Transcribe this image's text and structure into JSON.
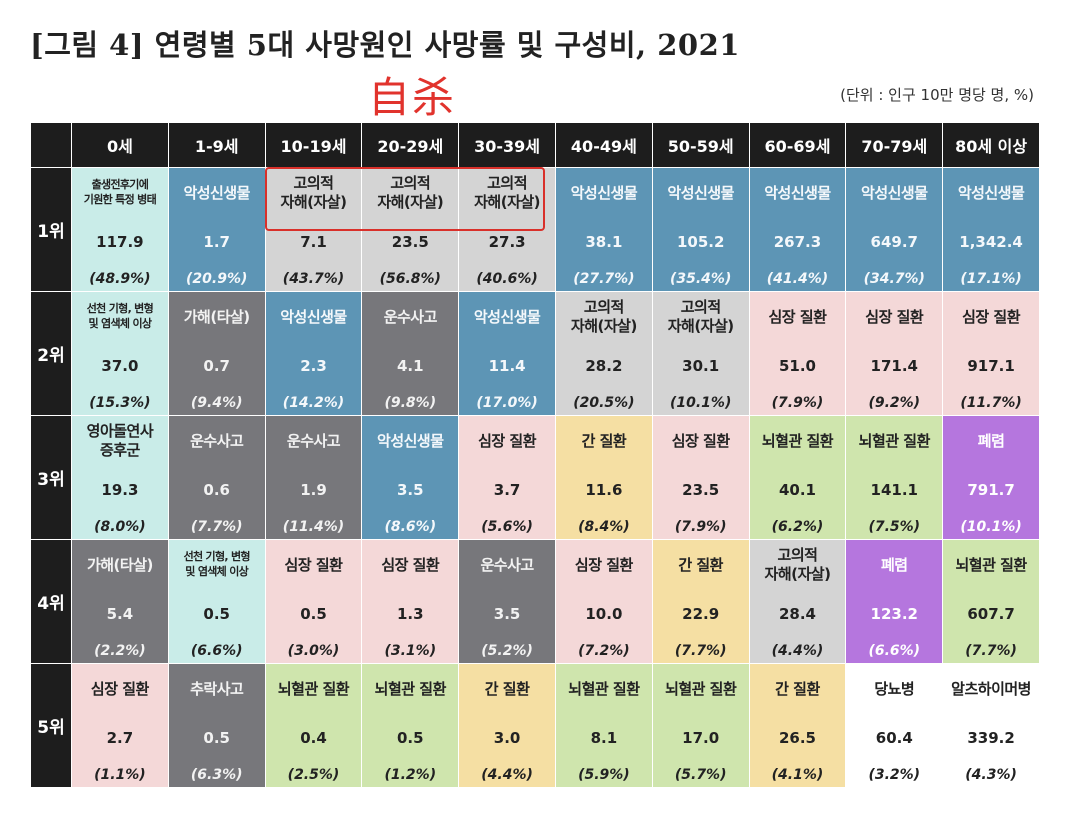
{
  "title": "[그림 4] 연령별 5대 사망원인 사망률 및 구성비, 2021",
  "annotation": "自杀",
  "unit": "(단위 : 인구 10만 명당 명, %)",
  "columns": [
    "0세",
    "1-9세",
    "10-19세",
    "20-29세",
    "30-39세",
    "40-49세",
    "50-59세",
    "60-69세",
    "70-79세",
    "80세 이상"
  ],
  "rows": [
    {
      "rank": "1위",
      "cells": [
        {
          "cause": "출생전후기에\n기원한 특정 병태",
          "rate": "117.9",
          "share": "(48.9%)",
          "color": "cyan",
          "small": true
        },
        {
          "cause": "악성신생물",
          "rate": "1.7",
          "share": "(20.9%)",
          "color": "blue"
        },
        {
          "cause": "고의적\n자해(자살)",
          "rate": "7.1",
          "share": "(43.7%)",
          "color": "lgray"
        },
        {
          "cause": "고의적\n자해(자살)",
          "rate": "23.5",
          "share": "(56.8%)",
          "color": "lgray"
        },
        {
          "cause": "고의적\n자해(자살)",
          "rate": "27.3",
          "share": "(40.6%)",
          "color": "lgray"
        },
        {
          "cause": "악성신생물",
          "rate": "38.1",
          "share": "(27.7%)",
          "color": "blue"
        },
        {
          "cause": "악성신생물",
          "rate": "105.2",
          "share": "(35.4%)",
          "color": "blue"
        },
        {
          "cause": "악성신생물",
          "rate": "267.3",
          "share": "(41.4%)",
          "color": "blue"
        },
        {
          "cause": "악성신생물",
          "rate": "649.7",
          "share": "(34.7%)",
          "color": "blue"
        },
        {
          "cause": "악성신생물",
          "rate": "1,342.4",
          "share": "(17.1%)",
          "color": "blue"
        }
      ]
    },
    {
      "rank": "2위",
      "cells": [
        {
          "cause": "선천 기형, 변형\n및 염색체 이상",
          "rate": "37.0",
          "share": "(15.3%)",
          "color": "cyan",
          "small": true
        },
        {
          "cause": "가해(타살)",
          "rate": "0.7",
          "share": "(9.4%)",
          "color": "dgray"
        },
        {
          "cause": "악성신생물",
          "rate": "2.3",
          "share": "(14.2%)",
          "color": "blue"
        },
        {
          "cause": "운수사고",
          "rate": "4.1",
          "share": "(9.8%)",
          "color": "dgray"
        },
        {
          "cause": "악성신생물",
          "rate": "11.4",
          "share": "(17.0%)",
          "color": "blue"
        },
        {
          "cause": "고의적\n자해(자살)",
          "rate": "28.2",
          "share": "(20.5%)",
          "color": "lgray"
        },
        {
          "cause": "고의적\n자해(자살)",
          "rate": "30.1",
          "share": "(10.1%)",
          "color": "lgray"
        },
        {
          "cause": "심장 질환",
          "rate": "51.0",
          "share": "(7.9%)",
          "color": "pink"
        },
        {
          "cause": "심장 질환",
          "rate": "171.4",
          "share": "(9.2%)",
          "color": "pink"
        },
        {
          "cause": "심장 질환",
          "rate": "917.1",
          "share": "(11.7%)",
          "color": "pink"
        }
      ]
    },
    {
      "rank": "3위",
      "cells": [
        {
          "cause": "영아돌연사\n증후군",
          "rate": "19.3",
          "share": "(8.0%)",
          "color": "cyan"
        },
        {
          "cause": "운수사고",
          "rate": "0.6",
          "share": "(7.7%)",
          "color": "dgray"
        },
        {
          "cause": "운수사고",
          "rate": "1.9",
          "share": "(11.4%)",
          "color": "dgray"
        },
        {
          "cause": "악성신생물",
          "rate": "3.5",
          "share": "(8.6%)",
          "color": "blue"
        },
        {
          "cause": "심장 질환",
          "rate": "3.7",
          "share": "(5.6%)",
          "color": "pink"
        },
        {
          "cause": "간 질환",
          "rate": "11.6",
          "share": "(8.4%)",
          "color": "yellow"
        },
        {
          "cause": "심장 질환",
          "rate": "23.5",
          "share": "(7.9%)",
          "color": "pink"
        },
        {
          "cause": "뇌혈관 질환",
          "rate": "40.1",
          "share": "(6.2%)",
          "color": "green"
        },
        {
          "cause": "뇌혈관 질환",
          "rate": "141.1",
          "share": "(7.5%)",
          "color": "green"
        },
        {
          "cause": "폐렴",
          "rate": "791.7",
          "share": "(10.1%)",
          "color": "purple"
        }
      ]
    },
    {
      "rank": "4위",
      "cells": [
        {
          "cause": "가해(타살)",
          "rate": "5.4",
          "share": "(2.2%)",
          "color": "dgray"
        },
        {
          "cause": "선천 기형, 변형\n및 염색체 이상",
          "rate": "0.5",
          "share": "(6.6%)",
          "color": "cyan",
          "small": true
        },
        {
          "cause": "심장 질환",
          "rate": "0.5",
          "share": "(3.0%)",
          "color": "pink"
        },
        {
          "cause": "심장 질환",
          "rate": "1.3",
          "share": "(3.1%)",
          "color": "pink"
        },
        {
          "cause": "운수사고",
          "rate": "3.5",
          "share": "(5.2%)",
          "color": "dgray"
        },
        {
          "cause": "심장 질환",
          "rate": "10.0",
          "share": "(7.2%)",
          "color": "pink"
        },
        {
          "cause": "간 질환",
          "rate": "22.9",
          "share": "(7.7%)",
          "color": "yellow"
        },
        {
          "cause": "고의적\n자해(자살)",
          "rate": "28.4",
          "share": "(4.4%)",
          "color": "lgray"
        },
        {
          "cause": "폐렴",
          "rate": "123.2",
          "share": "(6.6%)",
          "color": "purple"
        },
        {
          "cause": "뇌혈관 질환",
          "rate": "607.7",
          "share": "(7.7%)",
          "color": "green"
        }
      ]
    },
    {
      "rank": "5위",
      "cells": [
        {
          "cause": "심장 질환",
          "rate": "2.7",
          "share": "(1.1%)",
          "color": "pink"
        },
        {
          "cause": "추락사고",
          "rate": "0.5",
          "share": "(6.3%)",
          "color": "dgray"
        },
        {
          "cause": "뇌혈관 질환",
          "rate": "0.4",
          "share": "(2.5%)",
          "color": "green"
        },
        {
          "cause": "뇌혈관 질환",
          "rate": "0.5",
          "share": "(1.2%)",
          "color": "green"
        },
        {
          "cause": "간 질환",
          "rate": "3.0",
          "share": "(4.4%)",
          "color": "yellow"
        },
        {
          "cause": "뇌혈관 질환",
          "rate": "8.1",
          "share": "(5.9%)",
          "color": "green"
        },
        {
          "cause": "뇌혈관 질환",
          "rate": "17.0",
          "share": "(5.7%)",
          "color": "green"
        },
        {
          "cause": "간 질환",
          "rate": "26.5",
          "share": "(4.1%)",
          "color": "yellow"
        },
        {
          "cause": "당뇨병",
          "rate": "60.4",
          "share": "(3.2%)",
          "color": "white"
        },
        {
          "cause": "알츠하이머병",
          "rate": "339.2",
          "share": "(4.3%)",
          "color": "white"
        }
      ]
    }
  ],
  "colors": {
    "header": "#1d1d1d",
    "highlight": "#d9302a"
  }
}
